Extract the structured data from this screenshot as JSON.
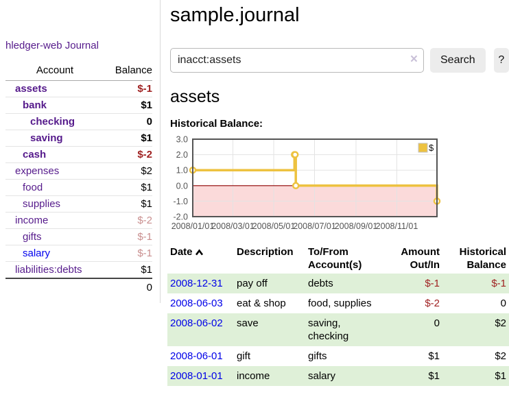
{
  "sidebar": {
    "app_title": "hledger-web",
    "nav_journal": "Journal",
    "accounts_header": {
      "account": "Account",
      "balance": "Balance"
    },
    "accounts": [
      {
        "name": "assets",
        "level": 1,
        "bold": true,
        "value": "$-1",
        "value_class": "neg"
      },
      {
        "name": "bank",
        "level": 2,
        "bold": true,
        "value": "$1",
        "value_class": "plain"
      },
      {
        "name": "checking",
        "level": 3,
        "bold": true,
        "value": "0",
        "value_class": "plain"
      },
      {
        "name": "saving",
        "level": 3,
        "bold": true,
        "value": "$1",
        "value_class": "plain"
      },
      {
        "name": "cash",
        "level": 2,
        "bold": true,
        "value": "$-2",
        "value_class": "neg"
      },
      {
        "name": "expenses",
        "level": 1,
        "bold": false,
        "value": "$2",
        "value_class": "plain"
      },
      {
        "name": "food",
        "level": 2,
        "bold": false,
        "value": "$1",
        "value_class": "plain"
      },
      {
        "name": "supplies",
        "level": 2,
        "bold": false,
        "value": "$1",
        "value_class": "plain"
      },
      {
        "name": "income",
        "level": 1,
        "bold": false,
        "value": "$-2",
        "value_class": "neg-dim"
      },
      {
        "name": "gifts",
        "level": 2,
        "bold": false,
        "value": "$-1",
        "value_class": "neg-dim"
      },
      {
        "name": "salary",
        "level": 2,
        "bold": false,
        "value": "$-1",
        "value_class": "neg-dim",
        "link_class": "blue"
      },
      {
        "name": "liabilities:debts",
        "level": 1,
        "bold": false,
        "value": "$1",
        "value_class": "plain"
      }
    ],
    "total": "0"
  },
  "main": {
    "page_title": "sample.journal",
    "search": {
      "value": "inacct:assets",
      "clear_icon": "×",
      "search_button": "Search",
      "help_button": "?"
    },
    "account_heading": "assets",
    "chart_title": "Historical Balance:",
    "register": {
      "headers": {
        "date": "Date",
        "description": "Description",
        "tofrom": "To/From Account(s)",
        "amount": "Amount Out/In",
        "balance": "Historical Balance"
      },
      "rows": [
        {
          "date": "2008-12-31",
          "description": "pay off",
          "tofrom": "debts",
          "amount": "$-1",
          "amount_class": "neg",
          "balance": "$-1",
          "balance_class": "neg"
        },
        {
          "date": "2008-06-03",
          "description": "eat & shop",
          "tofrom": "food, supplies",
          "amount": "$-2",
          "amount_class": "neg",
          "balance": "0",
          "balance_class": "plain"
        },
        {
          "date": "2008-06-02",
          "description": "save",
          "tofrom": "saving, checking",
          "amount": "0",
          "amount_class": "plain",
          "balance": "$2",
          "balance_class": "plain"
        },
        {
          "date": "2008-06-01",
          "description": "gift",
          "tofrom": "gifts",
          "amount": "$1",
          "amount_class": "plain",
          "balance": "$2",
          "balance_class": "plain"
        },
        {
          "date": "2008-01-01",
          "description": "income",
          "tofrom": "salary",
          "amount": "$1",
          "amount_class": "plain",
          "balance": "$1",
          "balance_class": "plain"
        }
      ]
    }
  },
  "chart_data": {
    "type": "line",
    "step": true,
    "title": "Historical Balance:",
    "series": [
      {
        "name": "$",
        "color": "#edc240",
        "points": [
          [
            "2008-01-01",
            1
          ],
          [
            "2008-06-01",
            2
          ],
          [
            "2008-06-02",
            2
          ],
          [
            "2008-06-03",
            0
          ],
          [
            "2008-12-31",
            -1
          ]
        ]
      }
    ],
    "x_ticks": [
      "2008/01/01",
      "2008/03/01",
      "2008/05/01",
      "2008/07/01",
      "2008/09/01",
      "2008/11/01"
    ],
    "y_ticks": [
      3.0,
      2.0,
      1.0,
      0.0,
      -1.0,
      -2.0
    ],
    "ylim": [
      -2,
      3
    ],
    "xlim": [
      "2008-01-01",
      "2008-12-31"
    ],
    "grid": true,
    "border_color": "#545454",
    "grid_color": "#e3e3e3",
    "zero_line_color": "#8e0000",
    "negative_region_color": "#fbdada",
    "legend_position": "top-right"
  }
}
